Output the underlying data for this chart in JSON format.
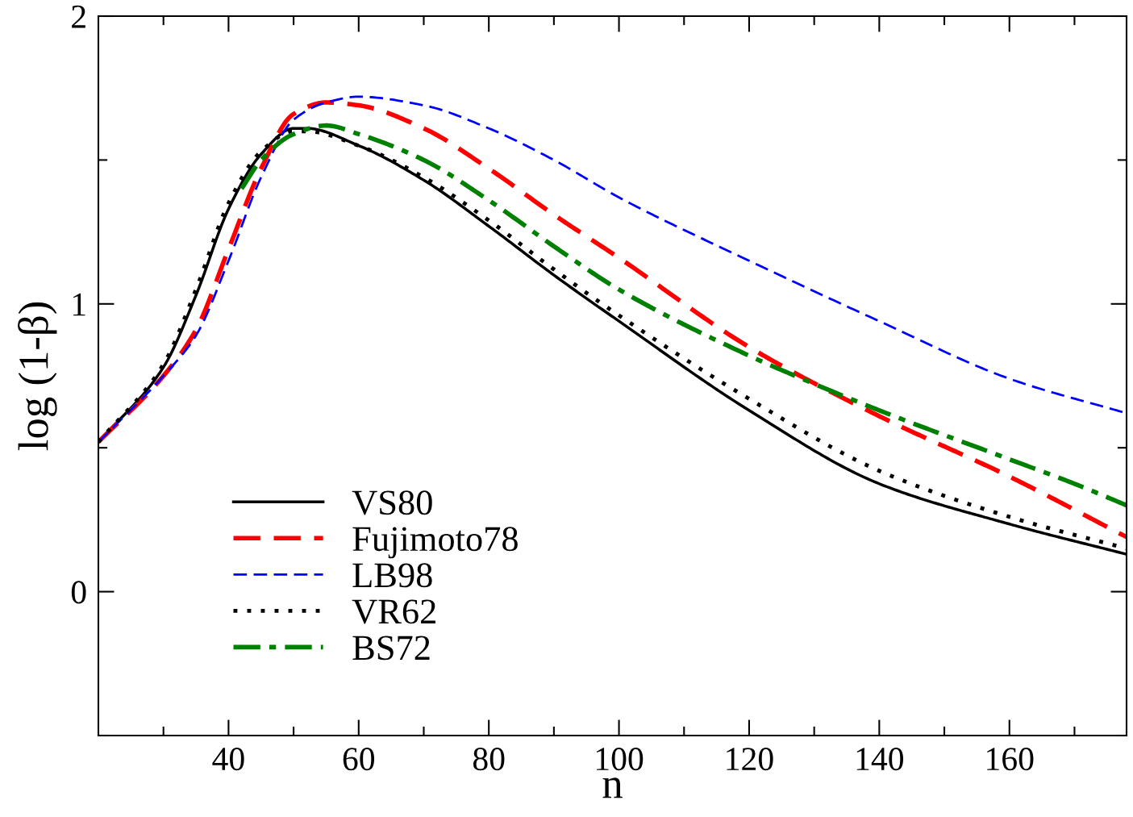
{
  "chart_data": {
    "type": "line",
    "xlabel": "n",
    "ylabel": "log (1-β)",
    "xlim": [
      20,
      178
    ],
    "ylim": [
      -0.5,
      2
    ],
    "xticks": [
      {
        "value": 30,
        "label": null
      },
      40,
      {
        "value": 50,
        "label": null
      },
      60,
      {
        "value": 70,
        "label": null
      },
      80,
      {
        "value": 90,
        "label": null
      },
      100,
      {
        "value": 110,
        "label": null
      },
      120,
      {
        "value": 130,
        "label": null
      },
      140,
      {
        "value": 150,
        "label": null
      },
      160,
      {
        "value": 170,
        "label": null
      }
    ],
    "yticks": [
      {
        "value": -0.5,
        "label": null
      },
      0,
      {
        "value": 0.5,
        "label": null
      },
      1,
      {
        "value": 1.5,
        "label": null
      },
      2
    ],
    "grid": false,
    "legend": "lower left",
    "marker": "none",
    "series": [
      {
        "name": "VS80",
        "color": "#000000",
        "line_style": "solid",
        "x": [
          20,
          30,
          35,
          40,
          45,
          50,
          52,
          60,
          70,
          80,
          90,
          100,
          120,
          140,
          160,
          178
        ],
        "values": [
          0.52,
          0.78,
          1.03,
          1.33,
          1.52,
          1.61,
          1.61,
          1.55,
          1.43,
          1.27,
          1.1,
          0.94,
          0.63,
          0.375,
          0.235,
          0.13
        ]
      },
      {
        "name": "Fujimoto78",
        "color": "#ff0000",
        "line_style": "dashed",
        "x": [
          20,
          30,
          35,
          40,
          45,
          50,
          55,
          60,
          70,
          80,
          90,
          100,
          120,
          140,
          160,
          178
        ],
        "values": [
          0.52,
          0.75,
          0.91,
          1.19,
          1.47,
          1.66,
          1.7,
          1.69,
          1.61,
          1.47,
          1.31,
          1.16,
          0.85,
          0.61,
          0.4,
          0.19
        ]
      },
      {
        "name": "LB98",
        "color": "#0000ff",
        "line_style": "dashed",
        "x": [
          20,
          30,
          35,
          40,
          45,
          50,
          55,
          60,
          70,
          80,
          90,
          100,
          120,
          140,
          160,
          178
        ],
        "values": [
          0.52,
          0.75,
          0.89,
          1.15,
          1.44,
          1.64,
          1.7,
          1.72,
          1.69,
          1.61,
          1.5,
          1.37,
          1.15,
          0.94,
          0.74,
          0.62
        ]
      },
      {
        "name": "VR62",
        "color": "#000000",
        "line_style": "dotted",
        "x": [
          20,
          30,
          35,
          40,
          45,
          50,
          52,
          60,
          70,
          80,
          90,
          100,
          120,
          140,
          160,
          178
        ],
        "values": [
          0.52,
          0.79,
          1.05,
          1.35,
          1.53,
          1.6,
          1.6,
          1.55,
          1.44,
          1.29,
          1.12,
          0.96,
          0.67,
          0.42,
          0.26,
          0.15
        ]
      },
      {
        "name": "BS72",
        "color": "#008000",
        "line_style": "dashdot",
        "x": [
          42,
          45,
          50,
          55,
          60,
          70,
          80,
          90,
          100,
          120,
          125,
          140,
          160,
          170,
          178
        ],
        "values": [
          1.4,
          1.5,
          1.59,
          1.62,
          1.59,
          1.5,
          1.36,
          1.2,
          1.05,
          0.82,
          0.77,
          0.63,
          0.46,
          0.375,
          0.3
        ]
      }
    ]
  }
}
